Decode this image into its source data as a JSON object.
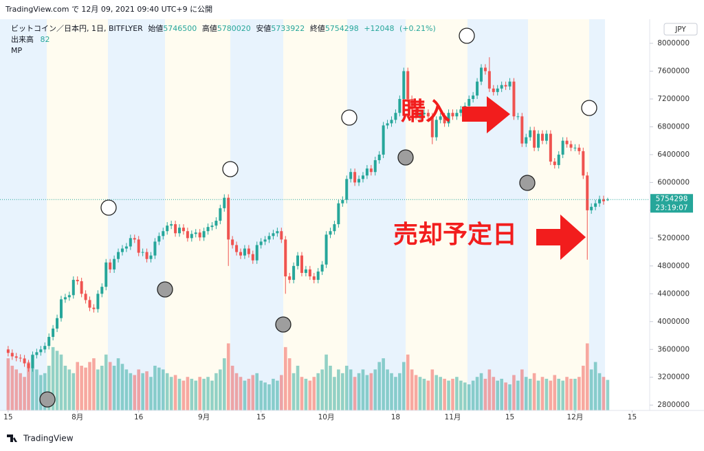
{
  "header": {
    "published": "TradingView.com で 12月 09, 2021 09:40 UTC+9 に公開"
  },
  "chart_data": {
    "type": "candlestick",
    "title": "ビットコイン／日本円, 1日, BITFLYER",
    "labels": {
      "open": "始値",
      "high": "高値",
      "low": "安値",
      "close": "終値",
      "volume": "出来高"
    },
    "change": {
      "value": 12048,
      "label": "+12048"
    },
    "change_pct": {
      "value": 0.21,
      "label": "(+0.21%)"
    },
    "indicator": "MP",
    "currency": "JPY",
    "countdown": "23:19:07",
    "up_color": "#26a69a",
    "down_color": "#ef5350",
    "open": [
      3600000,
      3550000,
      3500000,
      3480000,
      3470000,
      3400000,
      3330000,
      3520000,
      3560000,
      3600000,
      3650000,
      3780000,
      3900000,
      4050000,
      4320000,
      4350000,
      4380000,
      4600000,
      4580000,
      4400000,
      4310000,
      4200000,
      4180000,
      4400000,
      4500000,
      4850000,
      4750000,
      4900000,
      5000000,
      5050000,
      5080000,
      5200000,
      5180000,
      4990000,
      5000000,
      4900000,
      4950000,
      5150000,
      5230000,
      5300000,
      5380000,
      5400000,
      5270000,
      5350000,
      5300000,
      5200000,
      5260000,
      5280000,
      5210000,
      5300000,
      5360000,
      5380000,
      5450000,
      5630000,
      5780000,
      5180000,
      5100000,
      5000000,
      4950000,
      5050000,
      4970000,
      4880000,
      5100000,
      5150000,
      5180000,
      5230000,
      5270000,
      5300000,
      5180000,
      4650000,
      4600000,
      4800000,
      4950000,
      4700000,
      4750000,
      4650000,
      4600000,
      4720000,
      4820000,
      5250000,
      5300000,
      5400000,
      5700000,
      5750000,
      6050000,
      6150000,
      6000000,
      6050000,
      6100000,
      6200000,
      6150000,
      6320000,
      6400000,
      6820000,
      6850000,
      6900000,
      7000000,
      7200000,
      7600000,
      7200000,
      7050000,
      6950000,
      6980000,
      7000000,
      6950000,
      6650000,
      6900000,
      6950000,
      6850000,
      7000000,
      6950000,
      7000000,
      7050000,
      7100000,
      7200000,
      7250000,
      7450000,
      7650000,
      7600000,
      7350000,
      7300000,
      7350000,
      7400000,
      7380000,
      7450000,
      6950000,
      6950000,
      6560000,
      6650000,
      6750000,
      6500000,
      6700000,
      6600000,
      6700000,
      6300000,
      6250000,
      6400000,
      6600000,
      6550000,
      6500000,
      6500000,
      6450000,
      6100000,
      5600000,
      5650000,
      5700000,
      5760000,
      5746500
    ],
    "high": [
      3650000,
      3600000,
      3550000,
      3530000,
      3520000,
      3450000,
      3570000,
      3610000,
      3650000,
      3700000,
      3830000,
      3950000,
      4100000,
      4370000,
      4400000,
      4430000,
      4650000,
      4650000,
      4630000,
      4450000,
      4360000,
      4250000,
      4450000,
      4550000,
      4900000,
      4900000,
      4950000,
      5050000,
      5100000,
      5130000,
      5250000,
      5250000,
      5230000,
      5050000,
      5050000,
      5000000,
      5200000,
      5280000,
      5350000,
      5430000,
      5450000,
      5450000,
      5400000,
      5400000,
      5350000,
      5310000,
      5330000,
      5330000,
      5350000,
      5410000,
      5430000,
      5500000,
      5680000,
      5830000,
      5830000,
      5230000,
      5150000,
      5050000,
      5100000,
      5100000,
      5020000,
      5150000,
      5200000,
      5230000,
      5280000,
      5320000,
      5350000,
      5350000,
      5230000,
      4700000,
      4850000,
      5000000,
      5000000,
      4800000,
      4800000,
      4700000,
      4770000,
      4870000,
      5300000,
      5350000,
      5450000,
      5750000,
      5800000,
      6100000,
      6200000,
      6200000,
      6100000,
      6150000,
      6250000,
      6250000,
      6370000,
      6450000,
      6870000,
      6900000,
      6950000,
      7050000,
      7250000,
      7650000,
      7650000,
      7250000,
      7100000,
      7030000,
      7050000,
      7050000,
      7000000,
      6950000,
      7000000,
      7000000,
      7050000,
      7050000,
      7050000,
      7100000,
      7150000,
      7250000,
      7300000,
      7500000,
      7700000,
      7700000,
      7800000,
      7400000,
      7400000,
      7450000,
      7450000,
      7500000,
      7500000,
      7000000,
      7000000,
      6700000,
      6800000,
      6800000,
      6750000,
      6750000,
      6750000,
      6750000,
      6350000,
      6450000,
      6650000,
      6650000,
      6600000,
      6550000,
      6550000,
      6500000,
      6150000,
      5700000,
      5750000,
      5810000,
      5810000,
      5780020
    ],
    "low": [
      3500000,
      3450000,
      3430000,
      3420000,
      3350000,
      3280000,
      3280000,
      3470000,
      3510000,
      3550000,
      3600000,
      3730000,
      3850000,
      4000000,
      4270000,
      4300000,
      4330000,
      4530000,
      4350000,
      4260000,
      4150000,
      4130000,
      4130000,
      4350000,
      4450000,
      4700000,
      4700000,
      4850000,
      4950000,
      5000000,
      5030000,
      5130000,
      4940000,
      4940000,
      4850000,
      4850000,
      4900000,
      5100000,
      5180000,
      5250000,
      5330000,
      5220000,
      5220000,
      5250000,
      5150000,
      5150000,
      5210000,
      5160000,
      5160000,
      5250000,
      5310000,
      5330000,
      5400000,
      5580000,
      4800000,
      5050000,
      4950000,
      4900000,
      4900000,
      4920000,
      4830000,
      4830000,
      5050000,
      5100000,
      5130000,
      5180000,
      5220000,
      5130000,
      4400000,
      4550000,
      4550000,
      4750000,
      4650000,
      4650000,
      4600000,
      4550000,
      4550000,
      4670000,
      4770000,
      5200000,
      5250000,
      5350000,
      5650000,
      5700000,
      6000000,
      5950000,
      5950000,
      6000000,
      6050000,
      6100000,
      6100000,
      6270000,
      6350000,
      6770000,
      6800000,
      6850000,
      6950000,
      7150000,
      7150000,
      7000000,
      6900000,
      6900000,
      6930000,
      6900000,
      6550000,
      6600000,
      6850000,
      6800000,
      6800000,
      6900000,
      6900000,
      6950000,
      7000000,
      7050000,
      7150000,
      7200000,
      7400000,
      7550000,
      7300000,
      7250000,
      7250000,
      7300000,
      7330000,
      7330000,
      6900000,
      6900000,
      6510000,
      6510000,
      6600000,
      6450000,
      6450000,
      6550000,
      6550000,
      6250000,
      6200000,
      6200000,
      6350000,
      6500000,
      6450000,
      6450000,
      6400000,
      6050000,
      4890000,
      5550000,
      5600000,
      5650000,
      5680000,
      5733922
    ],
    "close": [
      3550000,
      3500000,
      3480000,
      3470000,
      3400000,
      3330000,
      3520000,
      3560000,
      3600000,
      3650000,
      3780000,
      3900000,
      4050000,
      4320000,
      4350000,
      4380000,
      4600000,
      4580000,
      4400000,
      4310000,
      4200000,
      4180000,
      4400000,
      4500000,
      4850000,
      4750000,
      4900000,
      5000000,
      5050000,
      5080000,
      5200000,
      5180000,
      4990000,
      5000000,
      4900000,
      4950000,
      5150000,
      5230000,
      5300000,
      5380000,
      5400000,
      5270000,
      5350000,
      5300000,
      5200000,
      5260000,
      5280000,
      5210000,
      5300000,
      5360000,
      5380000,
      5450000,
      5630000,
      5780000,
      5180000,
      5100000,
      5000000,
      4950000,
      5050000,
      4970000,
      4880000,
      5100000,
      5150000,
      5180000,
      5230000,
      5270000,
      5300000,
      5180000,
      4650000,
      4600000,
      4800000,
      4950000,
      4700000,
      4750000,
      4650000,
      4600000,
      4720000,
      4820000,
      5250000,
      5300000,
      5400000,
      5700000,
      5750000,
      6050000,
      6150000,
      6000000,
      6050000,
      6100000,
      6200000,
      6150000,
      6320000,
      6400000,
      6820000,
      6850000,
      6900000,
      7000000,
      7200000,
      7600000,
      7200000,
      7050000,
      6950000,
      6980000,
      7000000,
      6950000,
      6650000,
      6900000,
      6950000,
      6850000,
      7000000,
      6950000,
      7000000,
      7050000,
      7100000,
      7200000,
      7250000,
      7450000,
      7650000,
      7600000,
      7350000,
      7300000,
      7350000,
      7400000,
      7380000,
      7450000,
      6950000,
      6950000,
      6560000,
      6650000,
      6750000,
      6500000,
      6700000,
      6600000,
      6700000,
      6300000,
      6250000,
      6400000,
      6600000,
      6550000,
      6500000,
      6500000,
      6450000,
      6100000,
      5600000,
      5650000,
      5700000,
      5760000,
      5730000,
      5754298
    ],
    "volume": [
      140,
      120,
      110,
      100,
      90,
      130,
      150,
      110,
      95,
      100,
      120,
      170,
      160,
      150,
      120,
      110,
      100,
      130,
      120,
      115,
      130,
      140,
      110,
      120,
      150,
      130,
      120,
      140,
      125,
      110,
      100,
      95,
      110,
      100,
      105,
      90,
      120,
      115,
      110,
      100,
      90,
      95,
      85,
      80,
      90,
      85,
      80,
      90,
      85,
      90,
      80,
      100,
      110,
      140,
      180,
      120,
      100,
      90,
      80,
      85,
      95,
      100,
      80,
      75,
      70,
      85,
      80,
      95,
      170,
      140,
      100,
      120,
      90,
      85,
      80,
      90,
      100,
      110,
      150,
      120,
      90,
      110,
      100,
      120,
      110,
      90,
      100,
      110,
      95,
      100,
      110,
      130,
      140,
      110,
      100,
      90,
      100,
      130,
      150,
      110,
      95,
      90,
      85,
      80,
      110,
      95,
      90,
      85,
      80,
      85,
      90,
      80,
      75,
      70,
      80,
      90,
      100,
      85,
      110,
      90,
      80,
      85,
      75,
      70,
      95,
      80,
      110,
      90,
      85,
      100,
      80,
      90,
      85,
      80,
      95,
      85,
      80,
      90,
      85,
      85,
      90,
      120,
      180,
      110,
      130,
      100,
      90,
      82
    ],
    "volume_lim": [
      0,
      1050
    ],
    "ylim": [
      2723000,
      8346000
    ],
    "yticks": [
      2800000,
      3200000,
      3600000,
      4000000,
      4400000,
      4800000,
      5200000,
      5600000,
      6000000,
      6400000,
      6800000,
      7200000,
      7600000,
      8000000
    ],
    "xlim": [
      -2,
      157.3
    ],
    "xticks": [
      {
        "value": 0,
        "label": "15"
      },
      {
        "value": 17,
        "label": "8月"
      },
      {
        "value": 32,
        "label": "16"
      },
      {
        "value": 48,
        "label": "9月"
      },
      {
        "value": 62,
        "label": "15"
      },
      {
        "value": 78,
        "label": "10月"
      },
      {
        "value": 95,
        "label": "18"
      },
      {
        "value": 109,
        "label": "11月"
      },
      {
        "value": 123,
        "label": "15"
      },
      {
        "value": 139,
        "label": "12月"
      },
      {
        "value": 153,
        "label": "15"
      }
    ],
    "annotations": [
      "購入",
      "売却予定日"
    ]
  },
  "footer": {
    "brand": "TradingView"
  }
}
